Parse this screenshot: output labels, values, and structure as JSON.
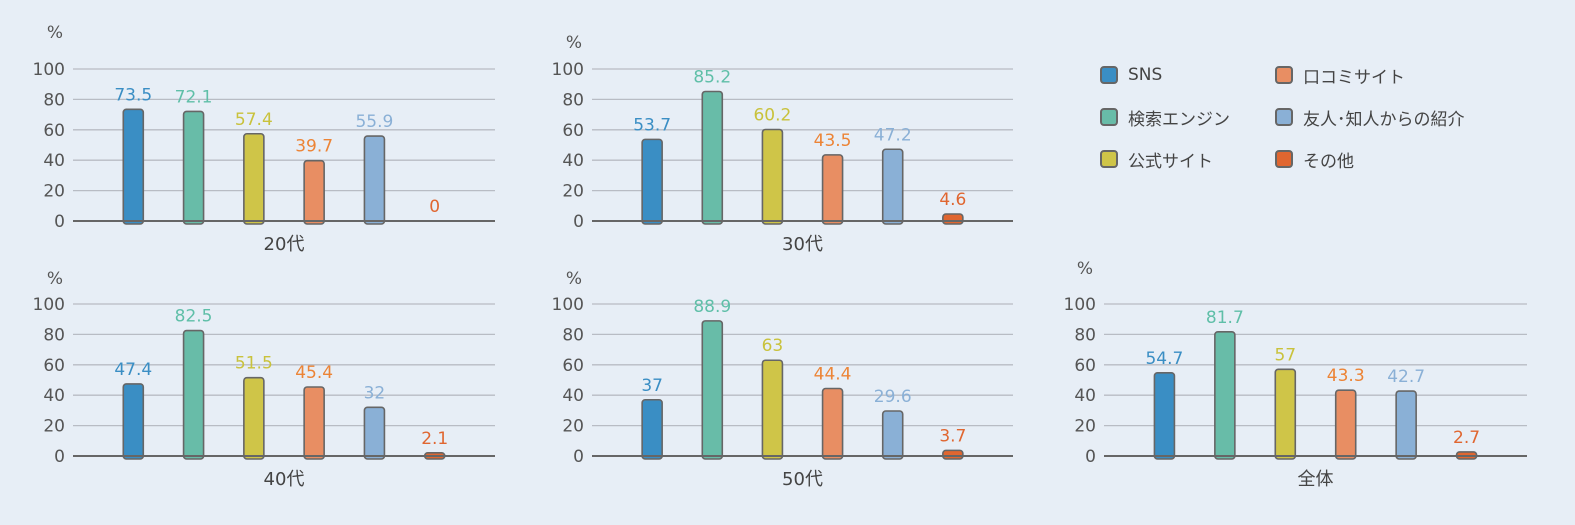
{
  "colors": {
    "SNS": {
      "fill": "#3a8ec4",
      "label": "#3a8ec4"
    },
    "search": {
      "fill": "#68bca8",
      "label": "#5fbfa8"
    },
    "official": {
      "fill": "#cfc548",
      "label": "#c9c23c"
    },
    "review": {
      "fill": "#e88e63",
      "label": "#ec8436"
    },
    "friends": {
      "fill": "#8ab0d6",
      "label": "#8ab0d6"
    },
    "other": {
      "fill": "#e06630",
      "label": "#e06630"
    }
  },
  "legend": [
    {
      "key": "SNS",
      "label": "SNS"
    },
    {
      "key": "review",
      "label": "口コミサイト"
    },
    {
      "key": "search",
      "label": "検索エンジン"
    },
    {
      "key": "friends",
      "label": "友人･知人からの紹介"
    },
    {
      "key": "official",
      "label": "公式サイト"
    },
    {
      "key": "other",
      "label": "その他"
    }
  ],
  "chart_data": [
    {
      "type": "bar",
      "title": "",
      "xlabel": "20代",
      "ylabel": "%",
      "ylim": [
        0,
        100
      ],
      "yticks": [
        "0",
        "20",
        "40",
        "60",
        "80",
        "100"
      ],
      "grid": true,
      "series_keys": [
        "SNS",
        "search",
        "official",
        "review",
        "friends",
        "other"
      ],
      "values": [
        73.5,
        72.1,
        57.4,
        39.7,
        55.9,
        0
      ],
      "labels": [
        "73.5",
        "72.1",
        "57.4",
        "39.7",
        "55.9",
        "0"
      ]
    },
    {
      "type": "bar",
      "title": "",
      "xlabel": "30代",
      "ylabel": "%",
      "ylim": [
        0,
        100
      ],
      "yticks": [
        "0",
        "20",
        "40",
        "60",
        "80",
        "100"
      ],
      "grid": true,
      "series_keys": [
        "SNS",
        "search",
        "official",
        "review",
        "friends",
        "other"
      ],
      "values": [
        53.7,
        85.2,
        60.2,
        43.5,
        47.2,
        4.6
      ],
      "labels": [
        "53.7",
        "85.2",
        "60.2",
        "43.5",
        "47.2",
        "4.6"
      ]
    },
    {
      "type": "bar",
      "title": "",
      "xlabel": "40代",
      "ylabel": "%",
      "ylim": [
        0,
        100
      ],
      "yticks": [
        "0",
        "20",
        "40",
        "60",
        "80",
        "100"
      ],
      "grid": true,
      "series_keys": [
        "SNS",
        "search",
        "official",
        "review",
        "friends",
        "other"
      ],
      "values": [
        47.4,
        82.5,
        51.5,
        45.4,
        32,
        2.1
      ],
      "labels": [
        "47.4",
        "82.5",
        "51.5",
        "45.4",
        "32",
        "2.1"
      ]
    },
    {
      "type": "bar",
      "title": "",
      "xlabel": "50代",
      "ylabel": "%",
      "ylim": [
        0,
        100
      ],
      "yticks": [
        "0",
        "20",
        "40",
        "60",
        "80",
        "100"
      ],
      "grid": true,
      "series_keys": [
        "SNS",
        "search",
        "official",
        "review",
        "friends",
        "other"
      ],
      "values": [
        37,
        88.9,
        63,
        44.4,
        29.6,
        3.7
      ],
      "labels": [
        "37",
        "88.9",
        "63",
        "44.4",
        "29.6",
        "3.7"
      ]
    },
    {
      "type": "bar",
      "title": "",
      "xlabel": "全体",
      "ylabel": "%",
      "ylim": [
        0,
        100
      ],
      "yticks": [
        "0",
        "20",
        "40",
        "60",
        "80",
        "100"
      ],
      "grid": true,
      "series_keys": [
        "SNS",
        "search",
        "official",
        "review",
        "friends",
        "other"
      ],
      "values": [
        54.7,
        81.7,
        57,
        43.3,
        42.7,
        2.7
      ],
      "labels": [
        "54.7",
        "81.7",
        "57",
        "43.3",
        "42.7",
        "2.7"
      ]
    }
  ]
}
